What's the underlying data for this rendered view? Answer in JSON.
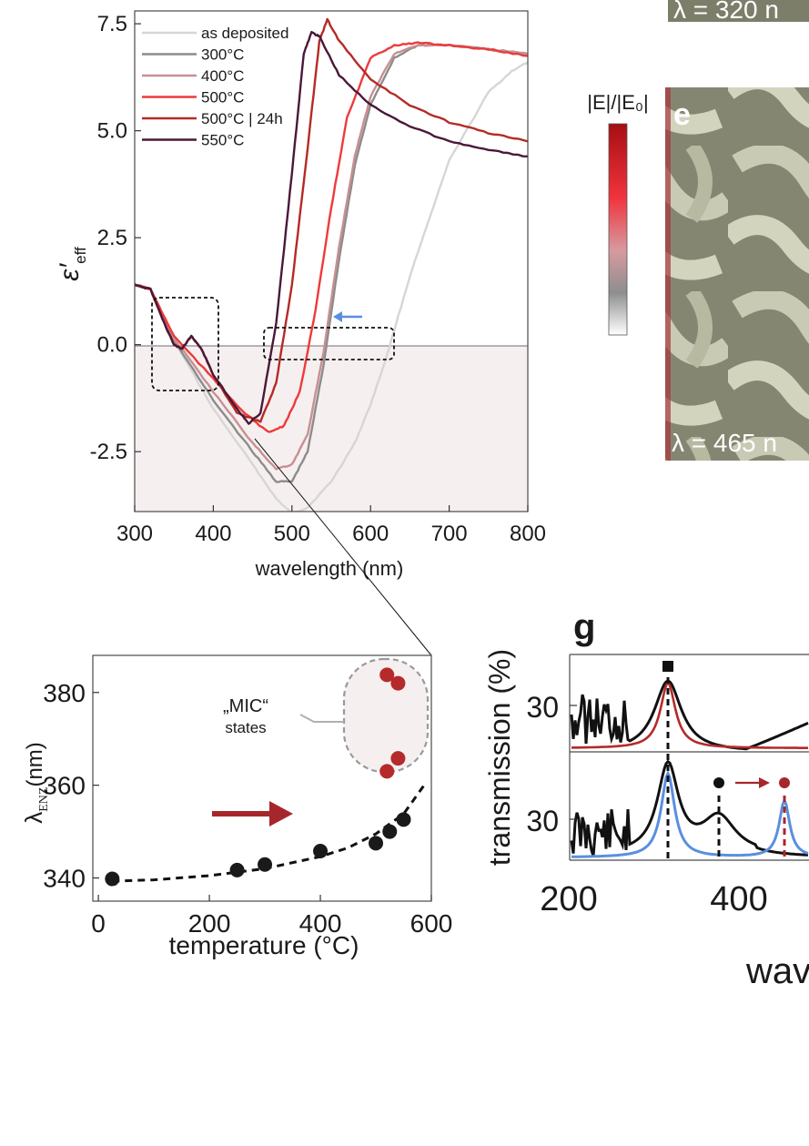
{
  "chart_data": [
    {
      "id": "eps",
      "type": "line",
      "xlabel": "wavelength (nm)",
      "ylabel_main": "ε′",
      "ylabel_sub": "eff",
      "xlim": [
        300,
        800
      ],
      "ylim": [
        -3.9,
        7.8
      ],
      "xticks": [
        "300",
        "400",
        "500",
        "600",
        "700",
        "800"
      ],
      "yticks": [
        "7.5",
        "5.0",
        "2.5",
        "0.0",
        "-2.5"
      ],
      "legend_position": "top-left",
      "series": [
        {
          "name": "as deposited",
          "color": "#d6d6d6",
          "x": [
            300,
            320,
            350,
            400,
            450,
            480,
            500,
            520,
            550,
            580,
            600,
            620,
            650,
            700,
            750,
            780,
            800
          ],
          "y": [
            1.4,
            1.3,
            0.1,
            -1.5,
            -2.8,
            -3.6,
            -3.95,
            -3.8,
            -3.2,
            -2.3,
            -1.4,
            -0.3,
            1.6,
            4.3,
            5.9,
            6.4,
            6.6
          ]
        },
        {
          "name": "300°C",
          "color": "#8c8c8c",
          "x": [
            300,
            320,
            350,
            400,
            450,
            480,
            500,
            520,
            540,
            560,
            580,
            600,
            630,
            660,
            700,
            750,
            800
          ],
          "y": [
            1.4,
            1.3,
            0.1,
            -1.3,
            -2.5,
            -3.2,
            -3.2,
            -2.5,
            -0.5,
            2.0,
            4.2,
            5.6,
            6.7,
            7.0,
            7.0,
            6.9,
            6.8
          ]
        },
        {
          "name": "400°C",
          "color": "#c98f92",
          "x": [
            300,
            320,
            350,
            400,
            450,
            480,
            500,
            520,
            540,
            560,
            580,
            600,
            630,
            660,
            700,
            750,
            800
          ],
          "y": [
            1.4,
            1.3,
            0.15,
            -1.1,
            -2.3,
            -2.9,
            -2.8,
            -2.1,
            -0.2,
            2.3,
            4.4,
            5.8,
            6.8,
            7.0,
            7.0,
            6.9,
            6.8
          ]
        },
        {
          "name": "500°C",
          "color": "#ee3a3a",
          "x": [
            300,
            320,
            350,
            400,
            440,
            470,
            490,
            510,
            530,
            550,
            570,
            600,
            630,
            660,
            700,
            750,
            800
          ],
          "y": [
            1.4,
            1.3,
            0.2,
            -0.8,
            -1.6,
            -2.05,
            -1.9,
            -1.1,
            0.8,
            3.2,
            5.3,
            6.7,
            7.0,
            7.05,
            7.0,
            6.9,
            6.75
          ]
        },
        {
          "name": "500°C | 24h",
          "color": "#b52a25",
          "x": [
            300,
            320,
            340,
            350,
            360,
            372,
            385,
            400,
            430,
            460,
            480,
            500,
            520,
            535,
            545,
            560,
            600,
            650,
            700,
            750,
            800
          ],
          "y": [
            1.4,
            1.3,
            0.4,
            0.0,
            -0.1,
            0.2,
            -0.1,
            -0.7,
            -1.6,
            -1.8,
            -0.9,
            1.4,
            4.6,
            7.1,
            7.6,
            7.1,
            6.2,
            5.6,
            5.2,
            4.95,
            4.75
          ]
        },
        {
          "name": "550°C",
          "color": "#4a1838",
          "x": [
            300,
            320,
            340,
            350,
            360,
            372,
            385,
            400,
            430,
            445,
            460,
            480,
            500,
            515,
            525,
            535,
            560,
            600,
            650,
            700,
            750,
            800
          ],
          "y": [
            1.4,
            1.3,
            0.4,
            0.0,
            -0.1,
            0.2,
            -0.1,
            -0.7,
            -1.5,
            -1.85,
            -1.6,
            0.5,
            4.0,
            6.8,
            7.3,
            7.2,
            6.3,
            5.6,
            5.1,
            4.75,
            4.55,
            4.4
          ]
        }
      ]
    },
    {
      "id": "lenz",
      "type": "scatter",
      "xlabel": "temperature (°C)",
      "ylabel_main": "λ",
      "ylabel_sub": "ENZ",
      "ylabel_unit": "(nm)",
      "xlim": [
        -10,
        600
      ],
      "ylim": [
        335,
        388
      ],
      "xticks": [
        "0",
        "200",
        "400",
        "600"
      ],
      "yticks": [
        "380",
        "360",
        "340"
      ],
      "series": [
        {
          "name": "",
          "color": "#1a1a1a",
          "x": [
            25,
            250,
            300,
            400,
            500,
            525,
            550
          ],
          "y": [
            339.8,
            341.7,
            342.9,
            345.8,
            347.5,
            350.0,
            352.6
          ]
        },
        {
          "name": "MIC",
          "color": "#b52a2a",
          "x": [
            520,
            540,
            520,
            540
          ],
          "y": [
            383.8,
            382.0,
            363.0,
            365.8
          ]
        }
      ],
      "fit": {
        "x": [
          25,
          100,
          200,
          300,
          400,
          450,
          500,
          550,
          590
        ],
        "y": [
          339.3,
          339.6,
          340.5,
          342.0,
          344.6,
          346.5,
          349.5,
          353.8,
          360.5
        ]
      },
      "annotation_line1": "„MIC“",
      "annotation_line2": "states"
    },
    {
      "id": "trans",
      "type": "line",
      "ylabel": "transmission (%)",
      "xlabel": "wav",
      "panel_label": "g",
      "xticks": [
        "200",
        "400"
      ],
      "yticks": [
        "30",
        "30"
      ]
    }
  ],
  "images": {
    "panel_e_label": "e",
    "panel_e_wavelength": "λ = 465 n",
    "top_wavelength": "λ = 320 n",
    "colorbar_title": "|E|/|E₀|"
  },
  "colors": {
    "red": "#b52a2a",
    "blue": "#5a8fe0",
    "text": "#1a1a1a"
  }
}
